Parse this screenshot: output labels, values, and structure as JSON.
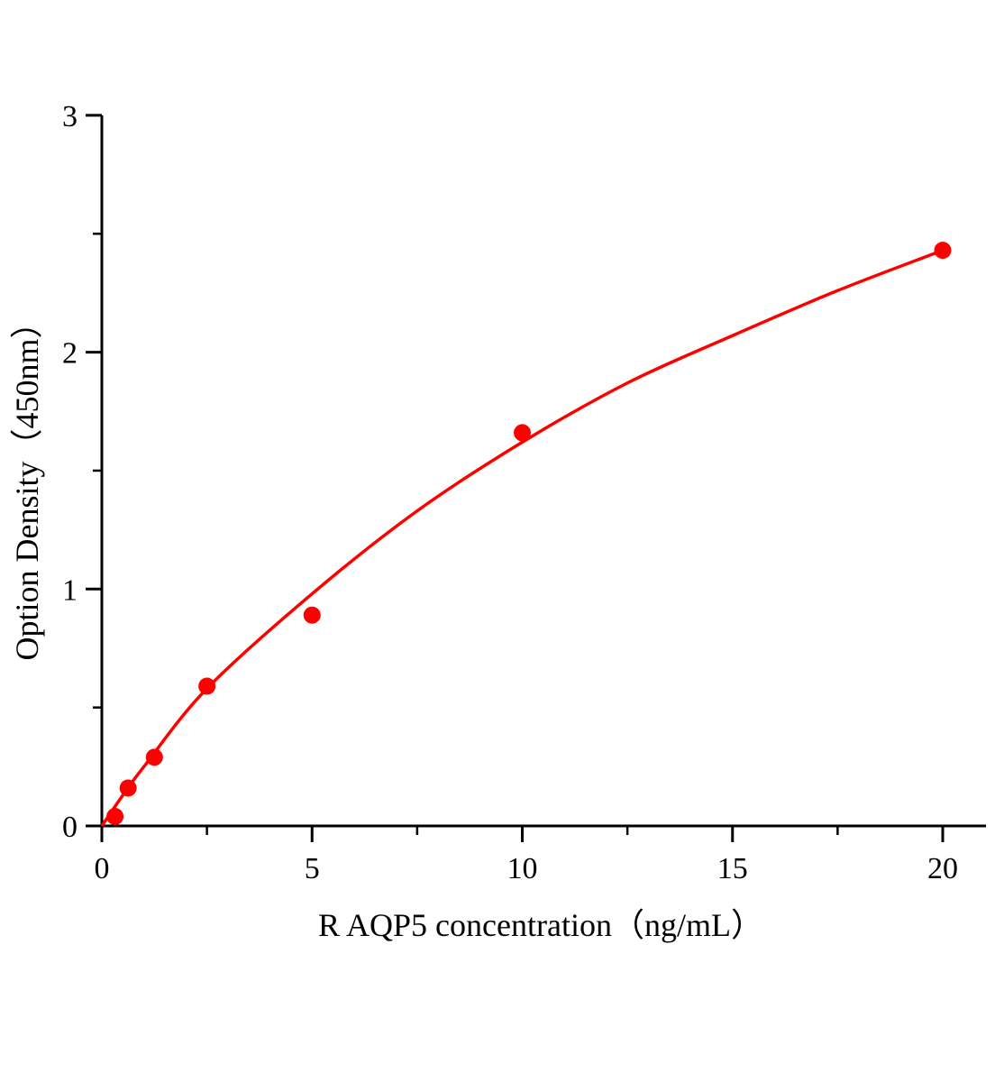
{
  "chart_data": {
    "type": "scatter",
    "title": "",
    "xlabel": "R AQP5 concentration（ng/mL）",
    "ylabel": "Option Density（450nm）",
    "xlim": [
      0,
      21
    ],
    "ylim": [
      0,
      3
    ],
    "xticks": [
      0,
      5,
      10,
      15,
      20
    ],
    "xtick_labels": [
      "0",
      "5",
      "10",
      "15",
      "20"
    ],
    "yticks": [
      0,
      1,
      2,
      3
    ],
    "ytick_labels": [
      "0",
      "1",
      "2",
      "3"
    ],
    "grid": false,
    "legend": "none",
    "color": "#ff0000",
    "points": {
      "x": [
        0.3125,
        0.625,
        1.25,
        2.5,
        5,
        10,
        20
      ],
      "y": [
        0.04,
        0.16,
        0.29,
        0.59,
        0.89,
        1.66,
        2.43
      ]
    },
    "fit_curve": {
      "x": [
        0,
        0.5,
        1,
        2.5,
        5,
        7.5,
        10,
        12.5,
        15,
        17.5,
        20
      ],
      "y": [
        0,
        0.13,
        0.25,
        0.58,
        0.98,
        1.33,
        1.62,
        1.87,
        2.07,
        2.26,
        2.43
      ]
    }
  }
}
